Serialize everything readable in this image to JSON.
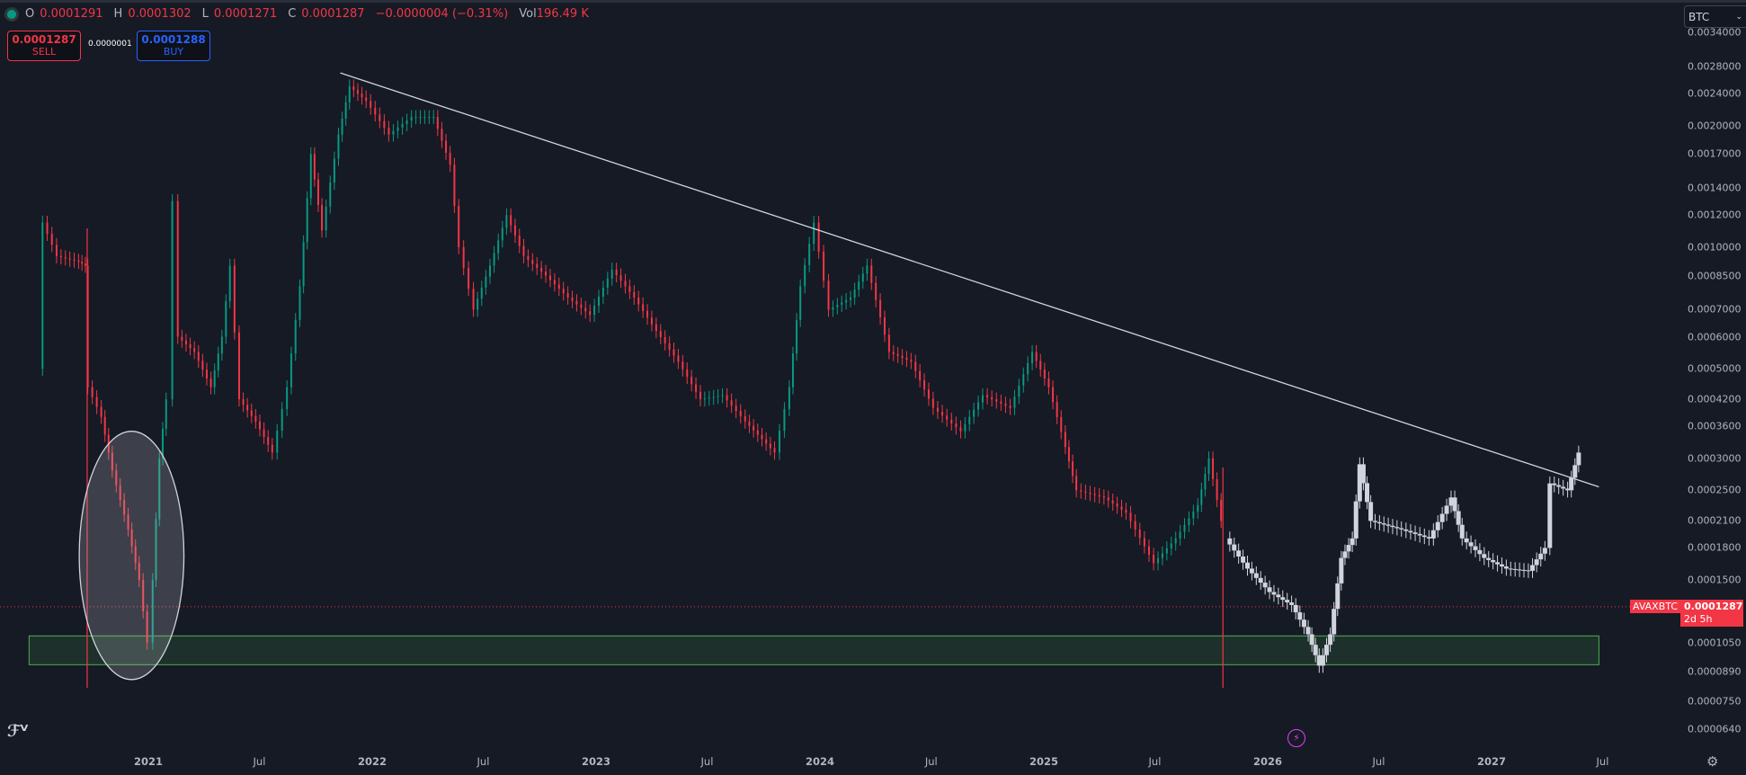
{
  "header": {
    "open_label": "O",
    "open": "0.0001291",
    "high_label": "H",
    "high": "0.0001302",
    "low_label": "L",
    "low": "0.0001271",
    "close_label": "C",
    "close": "0.0001287",
    "change": "−0.0000004 (−0.31%)",
    "vol_label": "Vol",
    "vol": "196.49 K"
  },
  "trade": {
    "sell_price": "0.0001287",
    "sell_label": "SELL",
    "spread": "0.0000001",
    "buy_price": "0.0001288",
    "buy_label": "BUY"
  },
  "currency_select": {
    "value": "BTC"
  },
  "current_price": {
    "symbol": "AVAXBTC",
    "price": "0.0001287",
    "countdown": "2d 5h"
  },
  "colors": {
    "up": "#089981",
    "down": "#f23645",
    "projection": "#d1d4dc",
    "background": "#161a25",
    "zone": "#4caf50"
  },
  "icons": {
    "logo": "tradingview-logo",
    "alert": "lightning-icon",
    "settings": "settings-icon"
  },
  "chart_data": {
    "type": "candlestick",
    "symbol": "AVAXBTC",
    "y_scale": "log",
    "ylim": [
      5.8e-05,
      0.0036
    ],
    "y_ticks": [
      "0.0034000",
      "0.0028000",
      "0.0024000",
      "0.0020000",
      "0.0017000",
      "0.0014000",
      "0.0012000",
      "0.0010000",
      "0.0008500",
      "0.0007000",
      "0.0006000",
      "0.0005000",
      "0.0004200",
      "0.0003600",
      "0.0003000",
      "0.0002500",
      "0.0002100",
      "0.0001800",
      "0.0001500",
      "0.0001050",
      "0.0000890",
      "0.0000750",
      "0.0000640"
    ],
    "x_ticks": [
      {
        "label": "2021",
        "date": "2021-01-01"
      },
      {
        "label": "Jul",
        "date": "2021-07-01"
      },
      {
        "label": "2022",
        "date": "2022-01-01"
      },
      {
        "label": "Jul",
        "date": "2022-07-01"
      },
      {
        "label": "2023",
        "date": "2023-01-01"
      },
      {
        "label": "Jul",
        "date": "2023-07-01"
      },
      {
        "label": "2024",
        "date": "2024-01-01"
      },
      {
        "label": "Jul",
        "date": "2024-07-01"
      },
      {
        "label": "2025",
        "date": "2025-01-01"
      },
      {
        "label": "Jul",
        "date": "2025-07-01"
      },
      {
        "label": "2026",
        "date": "2026-01-01"
      },
      {
        "label": "Jul",
        "date": "2026-07-01"
      },
      {
        "label": "2027",
        "date": "2027-01-01"
      },
      {
        "label": "Jul",
        "date": "2027-07-01"
      }
    ],
    "grid": false,
    "series": [
      {
        "kind": "candles",
        "points": [
          [
            "2020-07-08",
            0.0005
          ],
          [
            "2020-07-12",
            0.00115
          ],
          [
            "2020-08-04",
            0.00095
          ],
          [
            "2020-09-09",
            0.00092
          ],
          [
            "2020-09-20",
            0.0009
          ],
          [
            "2020-09-24",
            0.00045
          ],
          [
            "2020-10-16",
            0.00038
          ],
          [
            "2020-11-03",
            0.00028
          ],
          [
            "2020-11-29",
            0.0002
          ],
          [
            "2020-12-17",
            0.00015
          ],
          [
            "2020-12-30",
            0.000105
          ],
          [
            "2021-01-08",
            0.00015
          ],
          [
            "2021-01-19",
            0.0003
          ],
          [
            "2021-01-30",
            0.00042
          ],
          [
            "2021-02-09",
            0.0013
          ],
          [
            "2021-02-18",
            0.0006
          ],
          [
            "2021-03-17",
            0.00055
          ],
          [
            "2021-04-13",
            0.00045
          ],
          [
            "2021-05-01",
            0.0006
          ],
          [
            "2021-05-14",
            0.0009
          ],
          [
            "2021-05-29",
            0.00042
          ],
          [
            "2021-06-25",
            0.00037
          ],
          [
            "2021-07-22",
            0.00031
          ],
          [
            "2021-08-15",
            0.00045
          ],
          [
            "2021-09-05",
            0.0008
          ],
          [
            "2021-09-23",
            0.0017
          ],
          [
            "2021-10-11",
            0.0011
          ],
          [
            "2021-11-07",
            0.0019
          ],
          [
            "2021-11-25",
            0.0025
          ],
          [
            "2021-12-22",
            0.0023
          ],
          [
            "2022-01-28",
            0.0019
          ],
          [
            "2022-03-06",
            0.0021
          ],
          [
            "2022-04-11",
            0.0021
          ],
          [
            "2022-05-08",
            0.0016
          ],
          [
            "2022-05-22",
            0.001
          ],
          [
            "2022-06-15",
            0.0007
          ],
          [
            "2022-07-12",
            0.0009
          ],
          [
            "2022-08-08",
            0.0012
          ],
          [
            "2022-09-05",
            0.00095
          ],
          [
            "2022-10-11",
            0.00085
          ],
          [
            "2022-11-16",
            0.00075
          ],
          [
            "2022-12-22",
            0.00068
          ],
          [
            "2023-01-27",
            0.00088
          ],
          [
            "2023-03-04",
            0.00075
          ],
          [
            "2023-04-09",
            0.00062
          ],
          [
            "2023-05-15",
            0.00052
          ],
          [
            "2023-06-20",
            0.00042
          ],
          [
            "2023-07-26",
            0.00043
          ],
          [
            "2023-09-01",
            0.00037
          ],
          [
            "2023-10-19",
            0.00031
          ],
          [
            "2023-11-12",
            0.00045
          ],
          [
            "2023-11-30",
            0.0008
          ],
          [
            "2023-12-22",
            0.00115
          ],
          [
            "2024-01-15",
            0.0007
          ],
          [
            "2024-02-20",
            0.00075
          ],
          [
            "2024-03-18",
            0.0009
          ],
          [
            "2024-04-23",
            0.00055
          ],
          [
            "2024-05-29",
            0.00052
          ],
          [
            "2024-07-04",
            0.0004
          ],
          [
            "2024-08-18",
            0.00035
          ],
          [
            "2024-09-23",
            0.00043
          ],
          [
            "2024-11-07",
            0.0004
          ],
          [
            "2024-12-13",
            0.00055
          ],
          [
            "2025-01-09",
            0.00045
          ],
          [
            "2025-02-05",
            0.00032
          ],
          [
            "2025-02-23",
            0.00025
          ],
          [
            "2025-04-09",
            0.00024
          ],
          [
            "2025-05-15",
            0.00022
          ],
          [
            "2025-06-29",
            0.000165
          ],
          [
            "2025-08-04",
            0.00019
          ],
          [
            "2025-09-09",
            0.00023
          ],
          [
            "2025-09-27",
            0.0003
          ],
          [
            "2025-10-17",
            0.00021
          ]
        ]
      },
      {
        "kind": "projection-bars",
        "points": [
          [
            "2025-10-24",
            0.00019
          ],
          [
            "2025-11-29",
            0.00016
          ],
          [
            "2026-01-04",
            0.00014
          ],
          [
            "2026-02-09",
            0.00013
          ],
          [
            "2026-03-08",
            0.00011
          ],
          [
            "2026-03-26",
            9.2e-05
          ],
          [
            "2026-04-13",
            0.00011
          ],
          [
            "2026-05-01",
            0.00017
          ],
          [
            "2026-05-19",
            0.00019
          ],
          [
            "2026-05-31",
            0.00029
          ],
          [
            "2026-06-18",
            0.00021
          ],
          [
            "2026-08-07",
            0.0002
          ],
          [
            "2026-09-21",
            0.00019
          ],
          [
            "2026-10-27",
            0.00024
          ],
          [
            "2026-11-14",
            0.00019
          ],
          [
            "2026-12-20",
            0.00017
          ],
          [
            "2027-01-25",
            0.00016
          ],
          [
            "2027-03-02",
            0.000158
          ],
          [
            "2027-03-29",
            0.00018
          ],
          [
            "2027-04-06",
            0.00026
          ],
          [
            "2027-05-05",
            0.00025
          ],
          [
            "2027-05-23",
            0.00031
          ]
        ]
      }
    ],
    "annotations": {
      "trendline": [
        [
          "2021-11-10",
          0.0027
        ],
        [
          "2027-06-25",
          0.000255
        ]
      ],
      "support_zone": {
        "from": "2020-06-20",
        "to": "2027-06-25",
        "low": 9.25e-05,
        "high": 0.000109
      },
      "highlight_ellipse": {
        "from": "2020-09-10",
        "to": "2021-02-28",
        "low": 8.5e-05,
        "high": 0.00035
      },
      "vertical_lines": [
        {
          "date": "2020-09-23",
          "color": "#f23645"
        },
        {
          "date": "2025-10-20",
          "color": "#f23645"
        }
      ]
    }
  }
}
